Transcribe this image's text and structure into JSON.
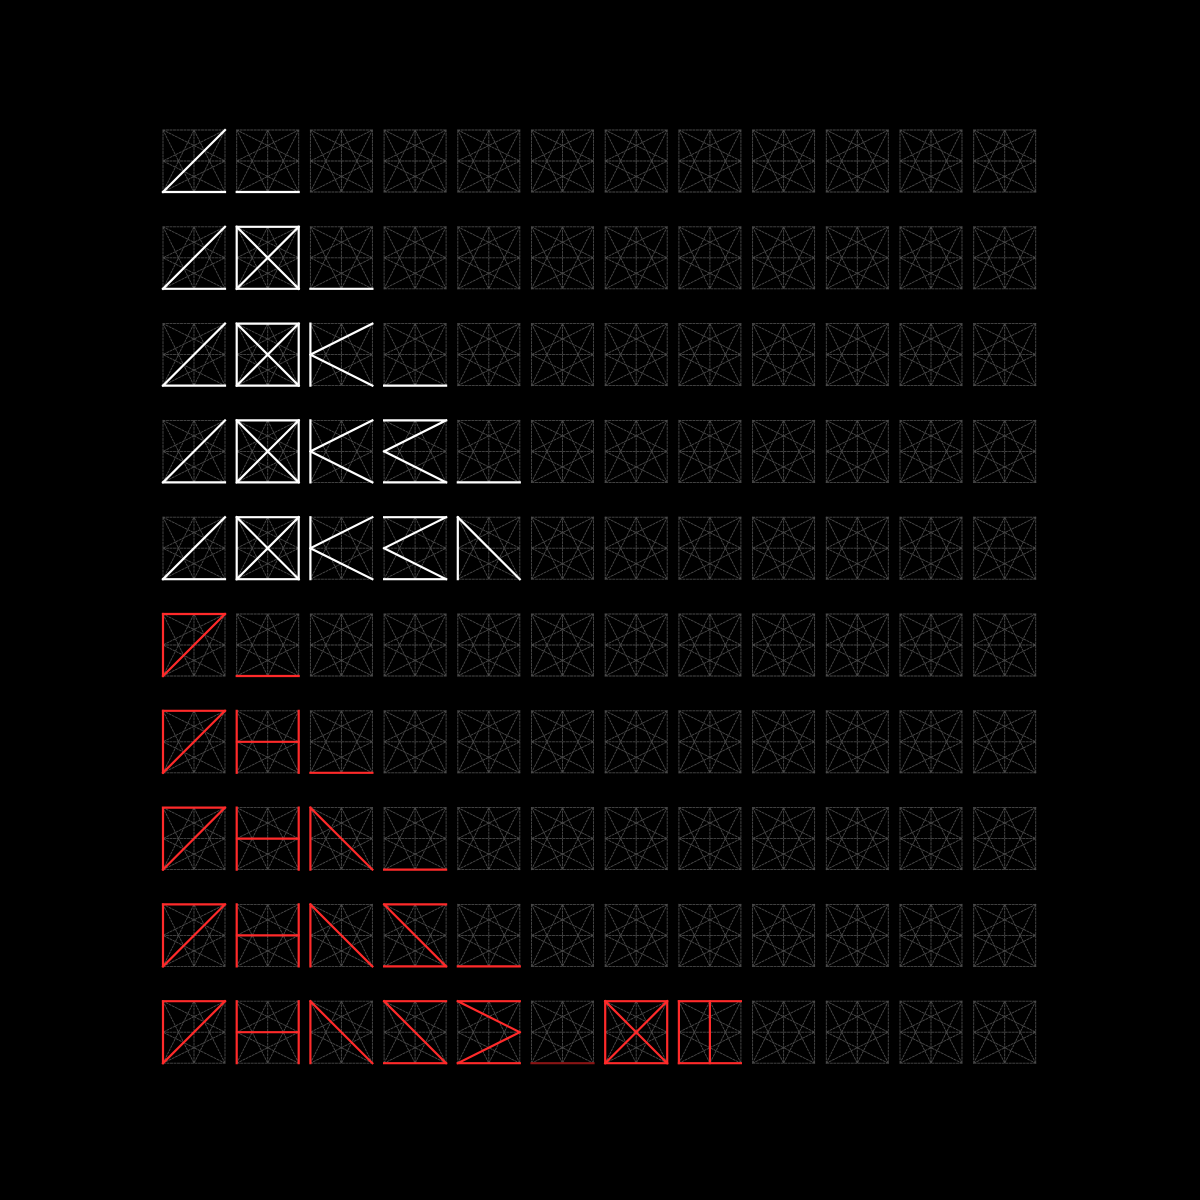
{
  "grid": {
    "columns": 12,
    "rows": 10
  },
  "colors": {
    "background": "#000000",
    "guide": "#4a4a4a",
    "white_glyph": "#ffffff",
    "red_glyph": "#ff2a2a",
    "cursor_dim_red": "#8a1414"
  },
  "glyphs": {
    "w1": [
      [
        "BL",
        "TR"
      ],
      [
        "BL",
        "BR"
      ]
    ],
    "w2": [
      [
        "TL",
        "TR"
      ],
      [
        "TR",
        "BR"
      ],
      [
        "BR",
        "BL"
      ],
      [
        "BL",
        "TL"
      ],
      [
        "TL",
        "BR"
      ],
      [
        "TR",
        "BL"
      ]
    ],
    "w3": [
      [
        "TL",
        "BL"
      ],
      [
        "TR",
        "LM"
      ],
      [
        "LM",
        "BR"
      ]
    ],
    "w4": [
      [
        "TL",
        "TR"
      ],
      [
        "TR",
        "LM"
      ],
      [
        "LM",
        "BR"
      ],
      [
        "BL",
        "BR"
      ]
    ],
    "w5": [
      [
        "TL",
        "BL"
      ],
      [
        "TL",
        "BR"
      ]
    ],
    "r1": [
      [
        "TL",
        "BL"
      ],
      [
        "TL",
        "TR"
      ],
      [
        "BL",
        "TR"
      ]
    ],
    "r2": [
      [
        "TL",
        "BL"
      ],
      [
        "TR",
        "BR"
      ],
      [
        "LM",
        "RM"
      ]
    ],
    "r3": [
      [
        "TL",
        "BL"
      ],
      [
        "TL",
        "BR"
      ]
    ],
    "r4": [
      [
        "TL",
        "TR"
      ],
      [
        "TL",
        "BR"
      ],
      [
        "BL",
        "BR"
      ]
    ],
    "r5": [
      [
        "TL",
        "TR"
      ],
      [
        "TL",
        "RM"
      ],
      [
        "RM",
        "BL"
      ],
      [
        "BL",
        "BR"
      ]
    ],
    "r7": [
      [
        "TL",
        "TR"
      ],
      [
        "TR",
        "BR"
      ],
      [
        "BR",
        "BL"
      ],
      [
        "BL",
        "TL"
      ],
      [
        "TL",
        "BR"
      ],
      [
        "TR",
        "BL"
      ]
    ],
    "r8": [
      [
        "TL",
        "BL"
      ],
      [
        "TL",
        "TR"
      ],
      [
        "BL",
        "BR"
      ],
      [
        "TM",
        "BM"
      ]
    ],
    "cursor": [
      [
        "BL",
        "BR"
      ]
    ]
  },
  "rows": [
    {
      "color": "white",
      "cells": [
        "w1",
        "cursor"
      ]
    },
    {
      "color": "white",
      "cells": [
        "w1",
        "w2",
        "cursor"
      ]
    },
    {
      "color": "white",
      "cells": [
        "w1",
        "w2",
        "w3",
        "cursor"
      ]
    },
    {
      "color": "white",
      "cells": [
        "w1",
        "w2",
        "w3",
        "w4",
        "cursor"
      ]
    },
    {
      "color": "white",
      "cells": [
        "w1",
        "w2",
        "w3",
        "w4",
        "w5"
      ]
    },
    {
      "color": "red",
      "cells": [
        "r1",
        "cursor"
      ]
    },
    {
      "color": "red",
      "cells": [
        "r1",
        "r2",
        "cursor"
      ]
    },
    {
      "color": "red",
      "cells": [
        "r1",
        "r2",
        "r3",
        "cursor"
      ]
    },
    {
      "color": "red",
      "cells": [
        "r1",
        "r2",
        "r3",
        "r4",
        "cursor"
      ]
    },
    {
      "color": "red",
      "cells": [
        "r1",
        "r2",
        "r3",
        "r4",
        "r5",
        "space-cursor",
        "r7",
        "r8"
      ]
    }
  ]
}
